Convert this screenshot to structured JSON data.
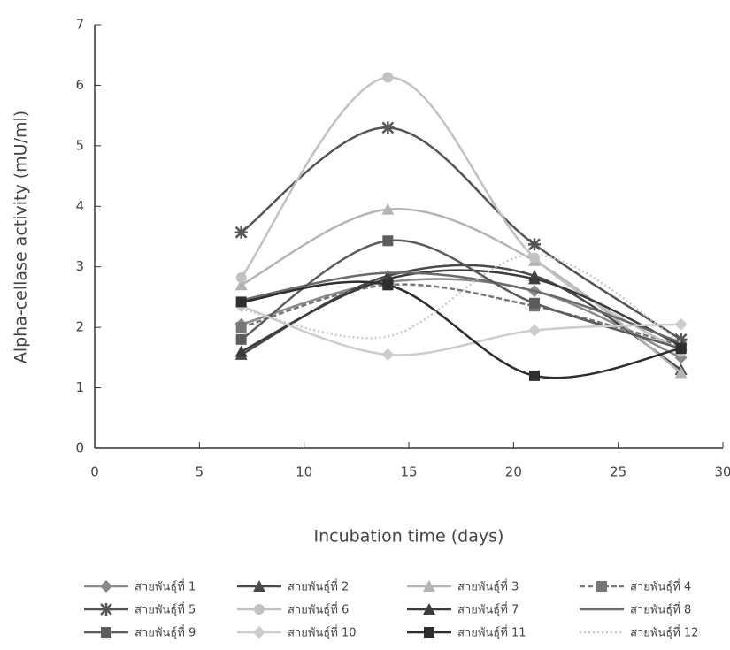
{
  "chart_data": {
    "type": "line",
    "x_label": "Incubation time (days)",
    "y_label": "Alpha-cellase activity (mU/ml)",
    "x": [
      7,
      14,
      21,
      28
    ],
    "xlim": [
      0,
      30
    ],
    "xticks": [
      0,
      5,
      10,
      15,
      20,
      25,
      30
    ],
    "ylim": [
      0,
      7
    ],
    "yticks": [
      0,
      1,
      2,
      3,
      4,
      5,
      6,
      7
    ],
    "smooth": true,
    "series": [
      {
        "name": "สายพันธุ์ที่ 1",
        "color": "#8a8a8a",
        "marker": "diamond",
        "line_style": "solid",
        "values": [
          2.05,
          2.75,
          2.6,
          1.5
        ]
      },
      {
        "name": "สายพันธุ์ที่ 2",
        "color": "#4a4a4a",
        "marker": "triangle",
        "line_style": "solid",
        "values": [
          1.55,
          2.85,
          2.85,
          1.3
        ]
      },
      {
        "name": "สายพันธุ์ที่ 3",
        "color": "#b4b4b4",
        "marker": "triangle",
        "line_style": "solid",
        "values": [
          2.7,
          3.95,
          3.1,
          1.25
        ]
      },
      {
        "name": "สายพันธุ์ที่ 4",
        "color": "#777777",
        "marker": "square",
        "line_style": "dashed",
        "values": [
          2.0,
          2.7,
          2.35,
          1.7
        ]
      },
      {
        "name": "สายพันธุ์ที่ 5",
        "color": "#555555",
        "marker": "star",
        "line_style": "solid",
        "values": [
          3.57,
          5.3,
          3.37,
          1.8
        ]
      },
      {
        "name": "สายพันธุ์ที่ 6",
        "color": "#c2c2c2",
        "marker": "circle",
        "line_style": "solid",
        "values": [
          2.82,
          6.13,
          3.15,
          1.6
        ]
      },
      {
        "name": "สายพันธุ์ที่ 7",
        "color": "#3c3c3c",
        "marker": "triangle",
        "line_style": "solid",
        "values": [
          1.6,
          2.8,
          2.8,
          1.7
        ]
      },
      {
        "name": "สายพันธุ์ที่ 8",
        "color": "#6a6a6a",
        "marker": "none",
        "line_style": "solid",
        "values": [
          2.45,
          2.9,
          2.6,
          1.75
        ]
      },
      {
        "name": "สายพันธุ์ที่ 9",
        "color": "#5c5c5c",
        "marker": "square",
        "line_style": "solid",
        "values": [
          1.8,
          3.43,
          2.4,
          1.65
        ]
      },
      {
        "name": "สายพันธุ์ที่ 10",
        "color": "#cccccc",
        "marker": "diamond",
        "line_style": "solid",
        "values": [
          2.35,
          1.55,
          1.95,
          2.05
        ]
      },
      {
        "name": "สายพันธุ์ที่ 11",
        "color": "#2e2e2e",
        "marker": "square",
        "line_style": "solid",
        "values": [
          2.42,
          2.7,
          1.2,
          1.65
        ]
      },
      {
        "name": "สายพันธุ์ที่ 12",
        "color": "#c8c8c8",
        "marker": "none",
        "line_style": "dotted",
        "values": [
          2.3,
          1.85,
          3.2,
          1.75
        ]
      }
    ]
  }
}
